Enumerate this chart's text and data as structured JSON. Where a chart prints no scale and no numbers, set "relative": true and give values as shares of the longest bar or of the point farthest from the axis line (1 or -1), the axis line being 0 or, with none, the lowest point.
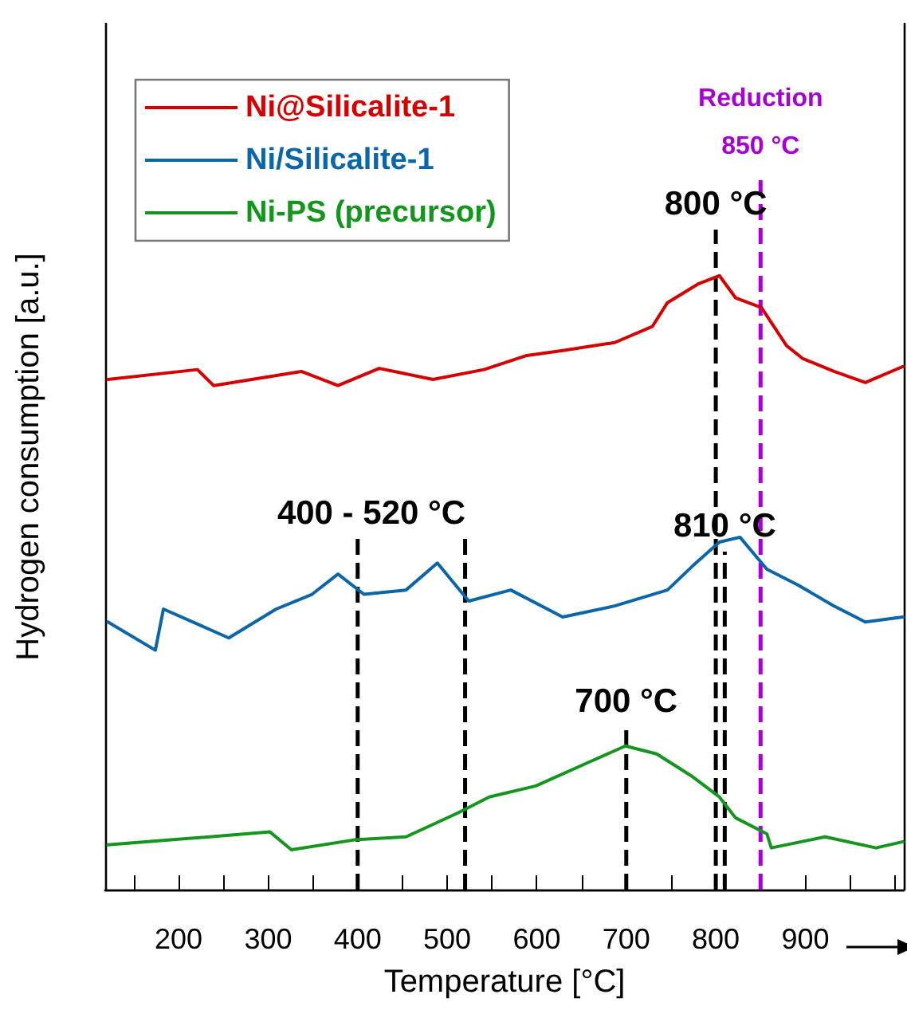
{
  "chart_data": {
    "type": "line",
    "relative": true,
    "xlabel": "Temperature [°C]",
    "ylabel": "Hydrogen consumption [a.u.]",
    "xlim": [
      118,
      1010
    ],
    "xticks": [
      {
        "value": 150,
        "label": null
      },
      200,
      {
        "value": 250,
        "label": null
      },
      300,
      {
        "value": 350,
        "label": null
      },
      400,
      {
        "value": 450,
        "label": null
      },
      500,
      {
        "value": 550,
        "label": null
      },
      600,
      {
        "value": 650,
        "label": null
      },
      700,
      {
        "value": 750,
        "label": null
      },
      800,
      {
        "value": 850,
        "label": null
      },
      900,
      {
        "value": 950,
        "label": null
      },
      {
        "value": 1000,
        "label": null
      }
    ],
    "tick_labels": "x",
    "grid": false,
    "legend": "top left",
    "marker": "none",
    "line_style": "solid",
    "series": [
      {
        "name": "Ni@Silicalite-1",
        "color": "#d40000",
        "x": [
          121,
          221,
          239,
          337,
          378,
          424,
          484,
          541,
          589,
          629,
          687,
          729,
          746,
          781,
          804,
          822,
          851,
          879,
          897,
          932,
          967,
          1009
        ],
        "values": [
          0.831,
          0.847,
          0.821,
          0.844,
          0.821,
          0.849,
          0.831,
          0.847,
          0.87,
          0.878,
          0.891,
          0.917,
          0.956,
          0.987,
          1,
          0.964,
          0.948,
          0.886,
          0.865,
          0.844,
          0.826,
          0.852
        ]
      },
      {
        "name": "Ni/Silicalite-1",
        "color": "#0a66a8",
        "x": [
          121,
          174,
          183,
          256,
          309,
          349,
          378,
          407,
          454,
          489,
          524,
          571,
          629,
          687,
          746,
          774,
          804,
          827,
          857,
          892,
          932,
          967,
          1009
        ],
        "values": [
          0.436,
          0.39,
          0.457,
          0.41,
          0.457,
          0.481,
          0.514,
          0.481,
          0.488,
          0.532,
          0.47,
          0.488,
          0.444,
          0.462,
          0.488,
          0.527,
          0.566,
          0.574,
          0.522,
          0.496,
          0.462,
          0.436,
          0.444
        ]
      },
      {
        "name": "Ni-PS (precursor)",
        "color": "#14961e",
        "x": [
          121,
          191,
          302,
          326,
          396,
          454,
          512,
          547,
          599,
          659,
          699,
          734,
          774,
          804,
          822,
          857,
          862,
          922,
          979,
          1009
        ],
        "values": [
          0.073,
          0.081,
          0.094,
          0.065,
          0.081,
          0.086,
          0.125,
          0.151,
          0.169,
          0.208,
          0.234,
          0.221,
          0.184,
          0.151,
          0.117,
          0.091,
          0.068,
          0.086,
          0.068,
          0.078
        ]
      }
    ],
    "ref_lines": [
      {
        "axis": "x",
        "value": 800,
        "label": "800 °C",
        "color": "#000000",
        "line_style": "dashed"
      },
      {
        "axis": "x",
        "value": 810,
        "label": "810 °C",
        "color": "#000000",
        "line_style": "dashed"
      },
      {
        "axis": "x",
        "value": 700,
        "label": "700 °C",
        "color": "#000000",
        "line_style": "dashed"
      },
      {
        "axis": "x",
        "value": 850,
        "label": "Reduction\n850 °C",
        "color": "#a600d6",
        "line_style": "dashed"
      },
      {
        "axis": "x",
        "value": 400,
        "color": "#000000",
        "line_style": "dashed"
      },
      {
        "axis": "x",
        "value": 520,
        "color": "#000000",
        "line_style": "dashed"
      }
    ],
    "annotations": [
      "400 - 520 °C"
    ]
  }
}
